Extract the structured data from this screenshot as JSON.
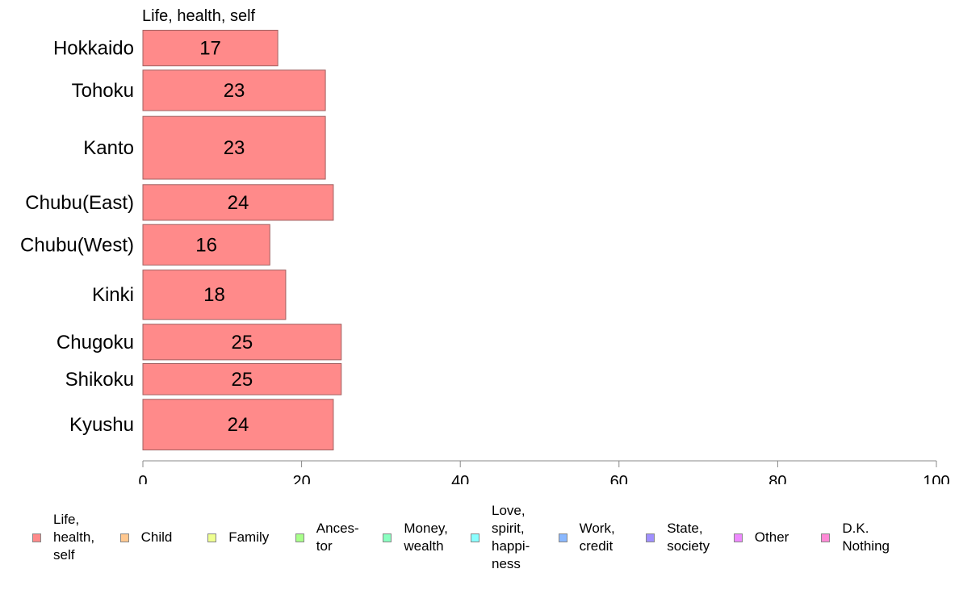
{
  "chart_data": {
    "type": "bar",
    "orientation": "horizontal",
    "title": "Life, health, self",
    "categories": [
      "Hokkaido",
      "Tohoku",
      "Kanto",
      "Chubu(East)",
      "Chubu(West)",
      "Kinki",
      "Chugoku",
      "Shikoku",
      "Kyushu"
    ],
    "values": [
      17,
      23,
      23,
      24,
      16,
      18,
      25,
      25,
      24
    ],
    "value_labels": [
      "17",
      "23",
      "23",
      "24",
      "16",
      "18",
      "25",
      "25",
      "24"
    ],
    "row_weights": [
      0.88,
      1.0,
      1.55,
      0.88,
      1.0,
      1.22,
      0.88,
      0.77,
      1.25
    ],
    "xlim": [
      0,
      100
    ],
    "xticks": [
      "0",
      "20",
      "40",
      "60",
      "80",
      "100"
    ],
    "xtick_values": [
      0,
      20,
      40,
      60,
      80,
      100
    ],
    "bar_color": "#ff8a8a",
    "bar_edge": "#a06060",
    "grid": false,
    "legend_placement": "bottom",
    "legend": [
      {
        "label": "Life,\nhealth,\nself",
        "color": "#ff8a8a"
      },
      {
        "label": "Child",
        "color": "#ffc890"
      },
      {
        "label": "Family",
        "color": "#eeff90"
      },
      {
        "label": "Ances-\ntor",
        "color": "#a8ff8a"
      },
      {
        "label": "Money,\nwealth",
        "color": "#8affc0"
      },
      {
        "label": "Love,\nspirit,\nhappi-\nness",
        "color": "#8affff"
      },
      {
        "label": "Work,\ncredit",
        "color": "#8ab8ff"
      },
      {
        "label": "State,\nsociety",
        "color": "#a090ff"
      },
      {
        "label": "Other",
        "color": "#ee8aff"
      },
      {
        "label": "D.K.\nNothing",
        "color": "#ff8ad6"
      }
    ]
  }
}
